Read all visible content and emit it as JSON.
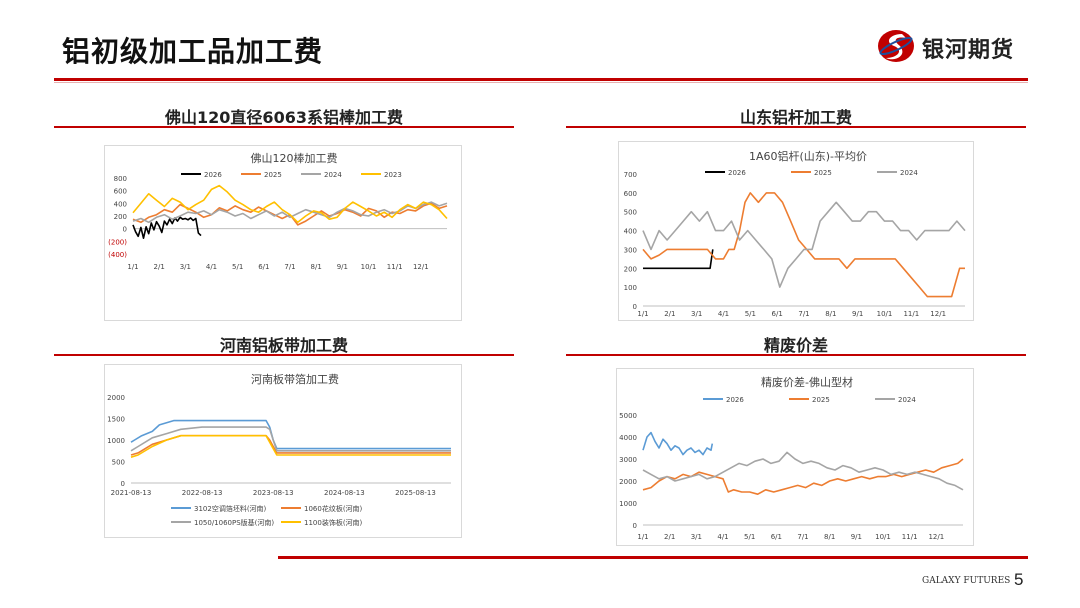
{
  "page": {
    "title": "铝初级加工品加工费",
    "page_number": "5",
    "footer_brand": "GALAXY FUTURES"
  },
  "logo": {
    "text": "银河期货"
  },
  "sections": [
    {
      "title": "佛山120直径6063系铝棒加工费"
    },
    {
      "title": "山东铝杆加工费"
    },
    {
      "title": "河南铝板带加工费"
    },
    {
      "title": "精废价差"
    }
  ],
  "chart_data": [
    {
      "type": "line",
      "title": "佛山120棒加工费",
      "x_ticks": [
        "1/1",
        "2/1",
        "3/1",
        "4/1",
        "5/1",
        "6/1",
        "7/1",
        "8/1",
        "9/1",
        "10/1",
        "11/1",
        "12/1"
      ],
      "y_ticks": [
        "800",
        "600",
        "400",
        "200",
        "0",
        "(200)",
        "(400)"
      ],
      "ylim": [
        -400,
        800
      ],
      "grid": false,
      "legend_position": "top",
      "series": [
        {
          "name": "2026",
          "color": "#000000",
          "x": [
            0,
            0.1,
            0.2,
            0.3,
            0.4,
            0.5,
            0.6,
            0.7,
            0.8,
            0.9,
            1.0,
            1.1,
            1.2,
            1.3,
            1.4,
            1.5,
            1.6,
            1.7,
            1.8,
            1.9,
            2.0,
            2.1,
            2.2,
            2.3,
            2.4,
            2.5,
            2.6
          ],
          "values": [
            60,
            -50,
            -120,
            20,
            -150,
            30,
            -80,
            90,
            -20,
            110,
            40,
            -60,
            120,
            60,
            150,
            80,
            170,
            120,
            180,
            150,
            160,
            140,
            170,
            130,
            160,
            -70,
            -110
          ]
        },
        {
          "name": "2025",
          "color": "#ed7d31",
          "x": [
            0,
            0.3,
            0.6,
            0.9,
            1.2,
            1.5,
            1.8,
            2.1,
            2.4,
            2.7,
            3.0,
            3.3,
            3.6,
            3.9,
            4.2,
            4.5,
            4.8,
            5.1,
            5.4,
            5.7,
            6.0,
            6.3,
            6.6,
            6.9,
            7.2,
            7.5,
            7.8,
            8.1,
            8.4,
            8.7,
            9.0,
            9.3,
            9.6,
            9.9,
            10.2,
            10.5,
            10.8,
            11.1,
            11.4,
            11.7,
            12.0
          ],
          "values": [
            150,
            100,
            180,
            220,
            300,
            260,
            380,
            320,
            260,
            180,
            220,
            330,
            280,
            360,
            300,
            260,
            340,
            280,
            220,
            160,
            220,
            60,
            120,
            200,
            280,
            200,
            240,
            300,
            260,
            200,
            320,
            280,
            180,
            260,
            240,
            300,
            280,
            360,
            400,
            320,
            360
          ]
        },
        {
          "name": "2024",
          "color": "#a5a5a5",
          "x": [
            0,
            0.3,
            0.6,
            0.9,
            1.2,
            1.5,
            1.8,
            2.1,
            2.4,
            2.7,
            3.0,
            3.3,
            3.6,
            3.9,
            4.2,
            4.5,
            4.8,
            5.1,
            5.4,
            5.7,
            6.0,
            6.3,
            6.6,
            6.9,
            7.2,
            7.5,
            7.8,
            8.1,
            8.4,
            8.7,
            9.0,
            9.3,
            9.6,
            9.9,
            10.2,
            10.5,
            10.8,
            11.1,
            11.4,
            11.7,
            12.0
          ],
          "values": [
            120,
            160,
            100,
            180,
            220,
            150,
            200,
            260,
            240,
            280,
            220,
            300,
            260,
            200,
            240,
            160,
            220,
            280,
            200,
            260,
            180,
            240,
            300,
            260,
            220,
            180,
            260,
            320,
            280,
            220,
            200,
            260,
            300,
            240,
            280,
            360,
            320,
            380,
            420,
            360,
            400
          ]
        },
        {
          "name": "2023",
          "color": "#ffc000",
          "x": [
            0,
            0.3,
            0.6,
            0.9,
            1.2,
            1.5,
            1.8,
            2.1,
            2.4,
            2.7,
            3.0,
            3.3,
            3.6,
            3.9,
            4.2,
            4.5,
            4.8,
            5.1,
            5.4,
            5.7,
            6.0,
            6.3,
            6.6,
            6.9,
            7.2,
            7.5,
            7.8,
            8.1,
            8.4,
            8.7,
            9.0,
            9.3,
            9.6,
            9.9,
            10.2,
            10.5,
            10.8,
            11.1,
            11.4,
            11.7,
            12.0
          ],
          "values": [
            250,
            400,
            550,
            450,
            350,
            480,
            420,
            300,
            380,
            450,
            620,
            680,
            580,
            450,
            380,
            300,
            260,
            350,
            420,
            300,
            220,
            100,
            200,
            280,
            250,
            150,
            180,
            320,
            420,
            350,
            280,
            200,
            260,
            180,
            300,
            380,
            320,
            420,
            380,
            300,
            160
          ]
        }
      ]
    },
    {
      "type": "line",
      "title": "1A60铝杆(山东)-平均价",
      "x_ticks": [
        "1/1",
        "2/1",
        "3/1",
        "4/1",
        "5/1",
        "6/1",
        "7/1",
        "8/1",
        "9/1",
        "10/1",
        "11/1",
        "12/1"
      ],
      "y_ticks": [
        "700",
        "600",
        "500",
        "400",
        "300",
        "200",
        "100",
        "0"
      ],
      "ylim": [
        0,
        700
      ],
      "grid": false,
      "legend_position": "top",
      "series": [
        {
          "name": "2026",
          "color": "#000000",
          "x": [
            0,
            0.5,
            1.0,
            1.5,
            2.0,
            2.3,
            2.5,
            2.6
          ],
          "values": [
            200,
            200,
            200,
            200,
            200,
            200,
            200,
            300
          ]
        },
        {
          "name": "2025",
          "color": "#ed7d31",
          "x": [
            0,
            0.3,
            0.6,
            0.9,
            1.2,
            1.5,
            1.8,
            2.1,
            2.4,
            2.7,
            3.0,
            3.2,
            3.4,
            3.6,
            3.8,
            4.0,
            4.3,
            4.6,
            4.9,
            5.2,
            5.5,
            5.8,
            6.1,
            6.4,
            6.7,
            7.0,
            7.3,
            7.6,
            7.9,
            8.2,
            8.5,
            8.8,
            9.1,
            9.4,
            9.7,
            10.0,
            10.3,
            10.6,
            10.9,
            11.2,
            11.5,
            11.8,
            12.0
          ],
          "values": [
            300,
            250,
            270,
            300,
            300,
            300,
            300,
            300,
            300,
            250,
            250,
            300,
            300,
            400,
            550,
            600,
            550,
            600,
            600,
            550,
            450,
            350,
            300,
            250,
            250,
            250,
            250,
            200,
            250,
            250,
            250,
            250,
            250,
            250,
            200,
            150,
            100,
            50,
            50,
            50,
            50,
            200,
            200
          ]
        },
        {
          "name": "2024",
          "color": "#a5a5a5",
          "x": [
            0,
            0.3,
            0.6,
            0.9,
            1.2,
            1.5,
            1.8,
            2.1,
            2.4,
            2.7,
            3.0,
            3.3,
            3.6,
            3.9,
            4.2,
            4.5,
            4.8,
            5.1,
            5.4,
            5.7,
            6.0,
            6.3,
            6.6,
            6.9,
            7.2,
            7.5,
            7.8,
            8.1,
            8.4,
            8.7,
            9.0,
            9.3,
            9.6,
            9.9,
            10.2,
            10.5,
            10.8,
            11.1,
            11.4,
            11.7,
            12.0
          ],
          "values": [
            400,
            300,
            400,
            350,
            400,
            450,
            500,
            450,
            500,
            400,
            400,
            450,
            350,
            400,
            350,
            300,
            250,
            100,
            200,
            250,
            300,
            300,
            450,
            500,
            550,
            500,
            450,
            450,
            500,
            500,
            450,
            450,
            400,
            400,
            350,
            400,
            400,
            400,
            400,
            450,
            400
          ]
        }
      ]
    },
    {
      "type": "line",
      "title": "河南板带箔加工费",
      "x_ticks": [
        "2021-08-13",
        "2022-08-13",
        "2023-08-13",
        "2024-08-13",
        "2025-08-13"
      ],
      "y_ticks": [
        "2000",
        "1500",
        "1000",
        "500",
        "0"
      ],
      "ylim": [
        0,
        2000
      ],
      "grid": false,
      "legend_position": "bottom",
      "series": [
        {
          "name": "3102空调箔坯料(河南)",
          "color": "#5b9bd5",
          "x": [
            0,
            0.05,
            0.15,
            0.3,
            0.4,
            0.6,
            0.9,
            1.2,
            1.6,
            1.9,
            1.95,
            2.0,
            2.05,
            2.5,
            3.0,
            3.5,
            4.0,
            4.5
          ],
          "values": [
            950,
            1000,
            1100,
            1200,
            1350,
            1450,
            1450,
            1450,
            1450,
            1450,
            1300,
            1000,
            800,
            800,
            800,
            800,
            800,
            800
          ]
        },
        {
          "name": "1060花纹板(河南)",
          "color": "#ed7d31",
          "x": [
            0,
            0.1,
            0.3,
            0.5,
            0.7,
            1.0,
            1.5,
            1.9,
            1.95,
            2.0,
            2.05,
            2.5,
            3.0,
            3.5,
            4.0,
            4.5
          ],
          "values": [
            650,
            700,
            900,
            1000,
            1100,
            1100,
            1100,
            1100,
            1000,
            850,
            700,
            700,
            700,
            700,
            700,
            700
          ]
        },
        {
          "name": "1050/1060PS版基(河南)",
          "color": "#a5a5a5",
          "x": [
            0,
            0.1,
            0.3,
            0.5,
            0.7,
            1.0,
            1.5,
            1.9,
            1.95,
            2.0,
            2.05,
            2.5,
            3.0,
            3.5,
            4.0,
            4.5
          ],
          "values": [
            750,
            850,
            1050,
            1150,
            1250,
            1300,
            1300,
            1300,
            1250,
            1000,
            750,
            750,
            750,
            750,
            750,
            750
          ]
        },
        {
          "name": "1100装饰板(河南)",
          "color": "#ffc000",
          "x": [
            0,
            0.1,
            0.3,
            0.5,
            0.7,
            1.0,
            1.5,
            1.9,
            1.95,
            2.0,
            2.05,
            2.5,
            3.0,
            3.5,
            4.0,
            4.5
          ],
          "values": [
            600,
            650,
            850,
            1000,
            1100,
            1100,
            1100,
            1100,
            950,
            800,
            650,
            650,
            650,
            650,
            650,
            650
          ]
        }
      ]
    },
    {
      "type": "line",
      "title": "精废价差-佛山型材",
      "x_ticks": [
        "1/1",
        "2/1",
        "3/1",
        "4/1",
        "5/1",
        "6/1",
        "7/1",
        "8/1",
        "9/1",
        "10/1",
        "11/1",
        "12/1"
      ],
      "y_ticks": [
        "5000",
        "4000",
        "3000",
        "2000",
        "1000",
        "0"
      ],
      "ylim": [
        0,
        5000
      ],
      "grid": false,
      "legend_position": "top",
      "series": [
        {
          "name": "2026",
          "color": "#5b9bd5",
          "x": [
            0,
            0.15,
            0.3,
            0.45,
            0.6,
            0.75,
            0.9,
            1.05,
            1.2,
            1.35,
            1.5,
            1.65,
            1.8,
            1.95,
            2.1,
            2.25,
            2.4,
            2.55,
            2.6
          ],
          "values": [
            3400,
            4000,
            4200,
            3800,
            3500,
            3900,
            3700,
            3400,
            3600,
            3500,
            3200,
            3400,
            3500,
            3300,
            3400,
            3200,
            3500,
            3400,
            3700
          ]
        },
        {
          "name": "2025",
          "color": "#ed7d31",
          "x": [
            0,
            0.3,
            0.6,
            0.9,
            1.2,
            1.5,
            1.8,
            2.1,
            2.4,
            2.7,
            3.0,
            3.2,
            3.4,
            3.7,
            4.0,
            4.3,
            4.6,
            4.9,
            5.2,
            5.5,
            5.8,
            6.1,
            6.4,
            6.7,
            7.0,
            7.3,
            7.6,
            7.9,
            8.2,
            8.5,
            8.8,
            9.1,
            9.4,
            9.7,
            10.0,
            10.3,
            10.6,
            10.9,
            11.2,
            11.5,
            11.8,
            12.0
          ],
          "values": [
            1600,
            1700,
            2000,
            2200,
            2100,
            2300,
            2200,
            2400,
            2300,
            2200,
            2100,
            1500,
            1600,
            1500,
            1500,
            1400,
            1600,
            1500,
            1600,
            1700,
            1800,
            1700,
            1900,
            1800,
            2000,
            2100,
            2000,
            2100,
            2200,
            2100,
            2200,
            2200,
            2300,
            2200,
            2300,
            2400,
            2500,
            2400,
            2600,
            2700,
            2800,
            3000
          ]
        },
        {
          "name": "2024",
          "color": "#a5a5a5",
          "x": [
            0,
            0.3,
            0.6,
            0.9,
            1.2,
            1.5,
            1.8,
            2.1,
            2.4,
            2.7,
            3.0,
            3.3,
            3.6,
            3.9,
            4.2,
            4.5,
            4.8,
            5.1,
            5.4,
            5.7,
            6.0,
            6.3,
            6.6,
            6.9,
            7.2,
            7.5,
            7.8,
            8.1,
            8.4,
            8.7,
            9.0,
            9.3,
            9.6,
            9.9,
            10.2,
            10.5,
            10.8,
            11.1,
            11.4,
            11.7,
            12.0
          ],
          "values": [
            2500,
            2300,
            2100,
            2200,
            2000,
            2100,
            2200,
            2300,
            2100,
            2200,
            2400,
            2600,
            2800,
            2700,
            2900,
            3000,
            2800,
            2900,
            3300,
            3000,
            2800,
            2900,
            2800,
            2600,
            2500,
            2700,
            2600,
            2400,
            2500,
            2600,
            2500,
            2300,
            2400,
            2300,
            2400,
            2300,
            2200,
            2100,
            1900,
            1800,
            1600
          ]
        }
      ]
    }
  ]
}
